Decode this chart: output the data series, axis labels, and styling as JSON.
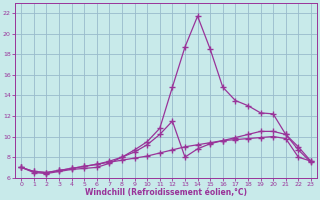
{
  "xlabel": "Windchill (Refroidissement éolien,°C)",
  "ylabel": "",
  "bg_color": "#c8eaea",
  "line_color": "#993399",
  "grid_color": "#99bbcc",
  "xlim": [
    -0.5,
    23.5
  ],
  "ylim": [
    6,
    23
  ],
  "xticks": [
    0,
    1,
    2,
    3,
    4,
    5,
    6,
    7,
    8,
    9,
    10,
    11,
    12,
    13,
    14,
    15,
    16,
    17,
    18,
    19,
    20,
    21,
    22,
    23
  ],
  "yticks": [
    6,
    8,
    10,
    12,
    14,
    16,
    18,
    20,
    22
  ],
  "line1_x": [
    0,
    1,
    2,
    3,
    4,
    5,
    6,
    7,
    8,
    9,
    10,
    11,
    12,
    13,
    14,
    15,
    16,
    17,
    18,
    19,
    20,
    21,
    22,
    23
  ],
  "line1_y": [
    7.0,
    6.5,
    6.4,
    6.6,
    6.8,
    6.9,
    7.0,
    7.4,
    8.0,
    8.7,
    9.5,
    10.8,
    14.8,
    18.7,
    21.7,
    18.5,
    14.8,
    13.5,
    13.0,
    12.3,
    12.2,
    10.2,
    8.7,
    7.5
  ],
  "line2_x": [
    0,
    1,
    2,
    3,
    4,
    5,
    6,
    7,
    8,
    9,
    10,
    11,
    12,
    13,
    14,
    15,
    16,
    17,
    18,
    19,
    20,
    21,
    22,
    23
  ],
  "line2_y": [
    7.0,
    6.6,
    6.5,
    6.7,
    6.9,
    7.1,
    7.3,
    7.6,
    8.0,
    8.5,
    9.2,
    10.2,
    11.5,
    8.0,
    8.8,
    9.3,
    9.6,
    9.9,
    10.2,
    10.5,
    10.5,
    10.2,
    9.0,
    7.6
  ],
  "line3_x": [
    0,
    1,
    2,
    3,
    4,
    5,
    6,
    7,
    8,
    9,
    10,
    11,
    12,
    13,
    14,
    15,
    16,
    17,
    18,
    19,
    20,
    21,
    22,
    23
  ],
  "line3_y": [
    7.0,
    6.6,
    6.5,
    6.7,
    6.9,
    7.1,
    7.3,
    7.5,
    7.7,
    7.9,
    8.1,
    8.4,
    8.7,
    9.0,
    9.2,
    9.4,
    9.6,
    9.7,
    9.8,
    9.9,
    10.0,
    9.8,
    8.0,
    7.6
  ]
}
